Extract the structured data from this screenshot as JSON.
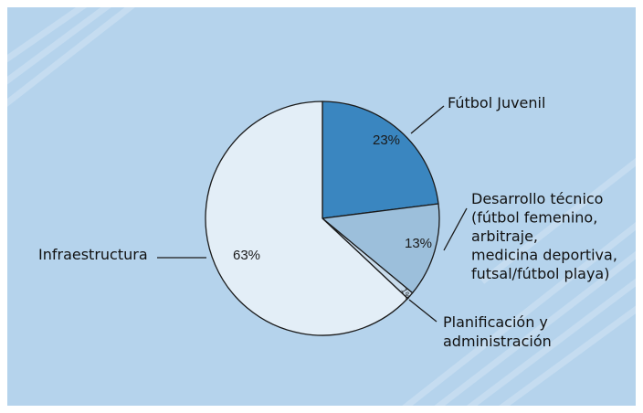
{
  "colors": {
    "background": "#b5d3ec",
    "stripe": "#c9dff2",
    "slice_futbol_juvenil": "#3a86c0",
    "slice_desarrollo_tecnico": "#9cbfdb",
    "slice_planificacion": "#c9dcec",
    "slice_infraestructura": "#e3eef7",
    "outline": "#1a1a1a"
  },
  "chart_data": {
    "type": "pie",
    "slices": [
      {
        "label_lines": [
          "Fútbol Juvenil"
        ],
        "value": 23,
        "value_label": "23%",
        "color": "#3a86c0"
      },
      {
        "label_lines": [
          "Desarrollo técnico",
          "(fútbol femenino,",
          "arbitraje,",
          "medicina deportiva,",
          "futsal/fútbol playa)"
        ],
        "value": 13,
        "value_label": "13%",
        "color": "#9cbfdb"
      },
      {
        "label_lines": [
          "Planificación y",
          "administración"
        ],
        "value": 1,
        "value_label": "1%",
        "color": "#c9dcec"
      },
      {
        "label_lines": [
          "Infraestructura"
        ],
        "value": 63,
        "value_label": "63%",
        "color": "#e3eef7"
      }
    ]
  }
}
